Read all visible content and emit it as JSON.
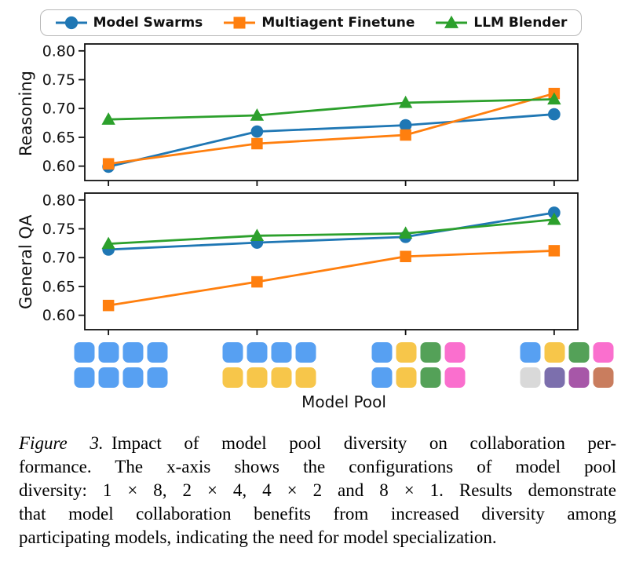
{
  "legend": {
    "items": [
      {
        "label": "Model Swarms",
        "color": "#1f77b4",
        "marker": "circle"
      },
      {
        "label": "Multiagent Finetune",
        "color": "#ff7f0e",
        "marker": "square"
      },
      {
        "label": "LLM Blender",
        "color": "#2ca02c",
        "marker": "triangle"
      }
    ]
  },
  "chart_data": [
    {
      "type": "line",
      "ylabel": "Reasoning",
      "x_categories": [
        "1×8",
        "2×4",
        "4×2",
        "8×1"
      ],
      "ylim": [
        0.575,
        0.812
      ],
      "yticks": [
        0.6,
        0.65,
        0.7,
        0.75,
        0.8
      ],
      "grid": false,
      "series": [
        {
          "name": "Model Swarms",
          "color": "#1f77b4",
          "marker": "circle",
          "values": [
            0.599,
            0.66,
            0.671,
            0.69
          ]
        },
        {
          "name": "Multiagent Finetune",
          "color": "#ff7f0e",
          "marker": "square",
          "values": [
            0.604,
            0.639,
            0.654,
            0.726
          ]
        },
        {
          "name": "LLM Blender",
          "color": "#2ca02c",
          "marker": "triangle",
          "values": [
            0.681,
            0.688,
            0.71,
            0.716
          ]
        }
      ]
    },
    {
      "type": "line",
      "ylabel": "General QA",
      "x_categories": [
        "1×8",
        "2×4",
        "4×2",
        "8×1"
      ],
      "ylim": [
        0.575,
        0.812
      ],
      "yticks": [
        0.6,
        0.65,
        0.7,
        0.75,
        0.8
      ],
      "grid": false,
      "series": [
        {
          "name": "Model Swarms",
          "color": "#1f77b4",
          "marker": "circle",
          "values": [
            0.714,
            0.726,
            0.736,
            0.778
          ]
        },
        {
          "name": "Multiagent Finetune",
          "color": "#ff7f0e",
          "marker": "square",
          "values": [
            0.617,
            0.658,
            0.702,
            0.712
          ]
        },
        {
          "name": "LLM Blender",
          "color": "#2ca02c",
          "marker": "triangle",
          "values": [
            0.724,
            0.738,
            0.742,
            0.766
          ]
        }
      ]
    }
  ],
  "xaxis": {
    "label": "Model Pool",
    "pool_colors": {
      "blue": "#57a0f2",
      "gold": "#f7c64a",
      "green": "#54a158",
      "pink": "#fa6fce",
      "gray": "#d9d9d9",
      "indigo": "#7c6fad",
      "plum": "#a757a8",
      "rust": "#c97d5e"
    },
    "pools": [
      {
        "name": "1x8",
        "rows": [
          [
            "blue",
            "blue",
            "blue",
            "blue"
          ],
          [
            "blue",
            "blue",
            "blue",
            "blue"
          ]
        ]
      },
      {
        "name": "2x4",
        "rows": [
          [
            "blue",
            "blue",
            "blue",
            "blue"
          ],
          [
            "gold",
            "gold",
            "gold",
            "gold"
          ]
        ]
      },
      {
        "name": "4x2",
        "rows": [
          [
            "blue",
            "gold",
            "green",
            "pink"
          ],
          [
            "blue",
            "gold",
            "green",
            "pink"
          ]
        ]
      },
      {
        "name": "8x1",
        "rows": [
          [
            "blue",
            "gold",
            "green",
            "pink"
          ],
          [
            "gray",
            "indigo",
            "plum",
            "rust"
          ]
        ]
      }
    ]
  },
  "caption": {
    "label": "Figure 3.",
    "lines": [
      "Impact of model pool diversity on collaboration per-",
      "formance. The x-axis shows the configurations of model pool",
      "diversity: 1 × 8, 2 × 4, 4 × 2 and 8 × 1. Results demonstrate",
      "that model collaboration benefits from increased diversity among",
      "participating models, indicating the need for model specialization."
    ]
  }
}
